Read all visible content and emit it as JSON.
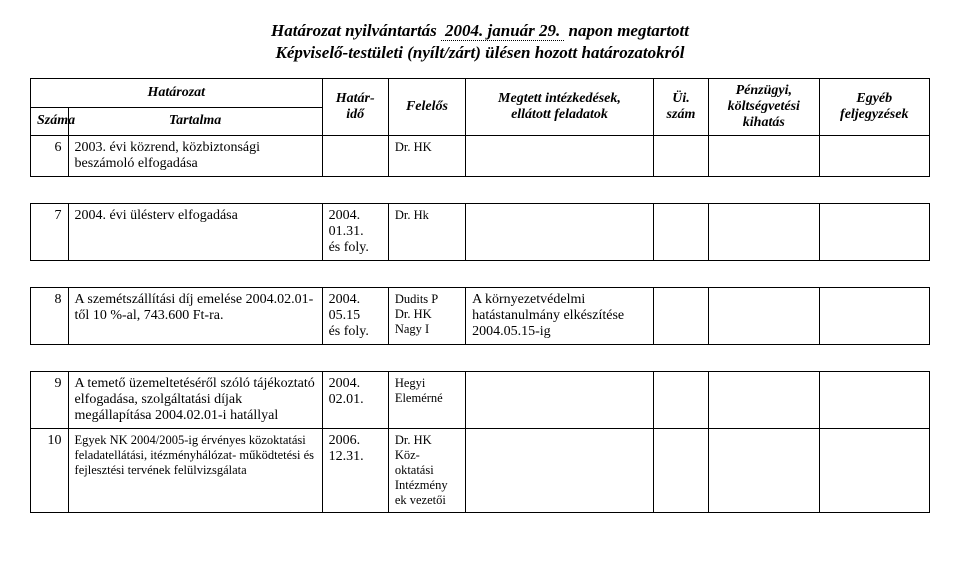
{
  "title": {
    "line1_a": "Határozat nyilvántartás",
    "line1_b": "2004. január 29.",
    "line1_c": "napon megtartott",
    "line2": "Képviselő-testületi (nyílt/zárt) ülésen hozott határozatokról"
  },
  "headers": {
    "hatarozat": "Határozat",
    "szama": "Száma",
    "tartalma": "Tartalma",
    "hatarido": "Határ-\nidő",
    "felelos": "Felelős",
    "megtett": "Megtett intézkedések,\nellátott feladatok",
    "ui": "Üi.\nszám",
    "penzugyi": "Pénzügyi,\nköltségvetési\nkihatás",
    "egyeb": "Egyéb\nfeljegyzések"
  },
  "rows": [
    {
      "num": "6",
      "content": "2003. évi közrend, közbiztonsági beszámoló elfogadása",
      "deadline": "",
      "resp": "Dr. HK",
      "actions": "",
      "ui": "",
      "fin": "",
      "notes": ""
    },
    {
      "num": "7",
      "content": "2004. évi ülésterv elfogadása",
      "deadline": "2004.\n01.31.\nés foly.",
      "resp": "Dr. Hk",
      "actions": "",
      "ui": "",
      "fin": "",
      "notes": ""
    },
    {
      "num": "8",
      "content": "A szemétszállítási díj emelése 2004.02.01-től 10 %-al, 743.600 Ft-ra.",
      "deadline": "2004.\n05.15\nés foly.",
      "resp": "Dudits P\nDr. HK\nNagy I",
      "actions": "A környezetvédelmi hatástanulmány elkészítése 2004.05.15-ig",
      "ui": "",
      "fin": "",
      "notes": ""
    },
    {
      "num": "9",
      "content": "A temető üzemeltetéséről szóló tájékoztató elfogadása, szolgáltatási díjak megállapítása 2004.02.01-i hatállyal",
      "deadline": "2004.\n02.01.",
      "resp": "Hegyi\nElemérné",
      "actions": "",
      "ui": "",
      "fin": "",
      "notes": ""
    },
    {
      "num": "10",
      "content": "Egyek NK 2004/2005-ig érvényes közoktatási feladatellátási, itézményhálózat- működtetési és fejlesztési tervének felülvizsgálata",
      "deadline": "2006.\n12.31.",
      "resp": "Dr. HK\nKöz-\noktatási\nIntézmény\nek vezetői",
      "actions": "",
      "ui": "",
      "fin": "",
      "notes": ""
    }
  ]
}
